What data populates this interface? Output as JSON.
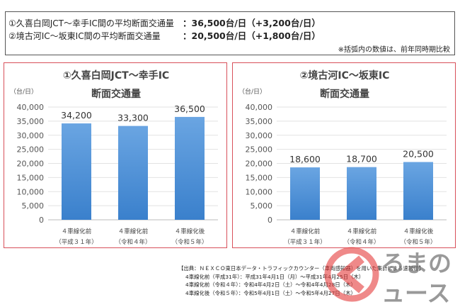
{
  "summary": {
    "line1_label": "①久喜白岡JCT～幸手IC間の平均断面交通量",
    "line1_value": "：36,500台/日（+3,200台/日）",
    "line2_label": "②境古河IC～坂東IC間の平均断面交通量",
    "line2_value": "：20,500台/日（+1,800台/日）",
    "note": "※括弧内の数値は、前年同時期比較"
  },
  "chart_data": [
    {
      "type": "bar",
      "title": "①久喜白岡JCT～幸手IC",
      "subtitle": "断面交通量",
      "ylabel": "（台/日）",
      "ylim": [
        0,
        40000
      ],
      "yticks": [
        "0",
        "5,000",
        "10,000",
        "15,000",
        "20,000",
        "25,000",
        "30,000",
        "35,000",
        "40,000"
      ],
      "categories": [
        [
          "４車線化前",
          "（平成３１年）"
        ],
        [
          "４車線化前",
          "（令和４年）"
        ],
        [
          "４車線化後",
          "（令和５年）"
        ]
      ],
      "values": [
        34200,
        33300,
        36500
      ],
      "labels": [
        "34,200",
        "33,300",
        "36,500"
      ],
      "color": "#4a8fd8",
      "grid": true
    },
    {
      "type": "bar",
      "title": "②境古河IC～坂東IC",
      "subtitle": "断面交通量",
      "ylabel": "（台/日）",
      "ylim": [
        0,
        40000
      ],
      "yticks": [
        "0",
        "5,000",
        "10,000",
        "15,000",
        "20,000",
        "25,000",
        "30,000",
        "35,000",
        "40,000"
      ],
      "categories": [
        [
          "４車線化前",
          "（平成３１年）"
        ],
        [
          "４車線化前",
          "（令和４年）"
        ],
        [
          "４車線化後",
          "（令和５年）"
        ]
      ],
      "values": [
        18600,
        18700,
        20500
      ],
      "labels": [
        "18,600",
        "18,700",
        "20,500"
      ],
      "color": "#4a8fd8",
      "grid": true
    }
  ],
  "source": {
    "lines": [
      "【出典：ＮＥＸＣＯ東日本データ・トラフィックカウンター（車両感知器）を用いた集計による速報値】",
      "4車線化前（平成31年）：平成31年4月1日（月）～平成31年4月25日（木）",
      "4車線化前（令和４年）：令和4年4月2日（土）～令和4年4月28日（木）",
      "4車線化後（令和５年）：令和5年4月1日（土）～令和5年4月27日（木）"
    ]
  },
  "watermark": {
    "text": "くるまのニュース"
  }
}
